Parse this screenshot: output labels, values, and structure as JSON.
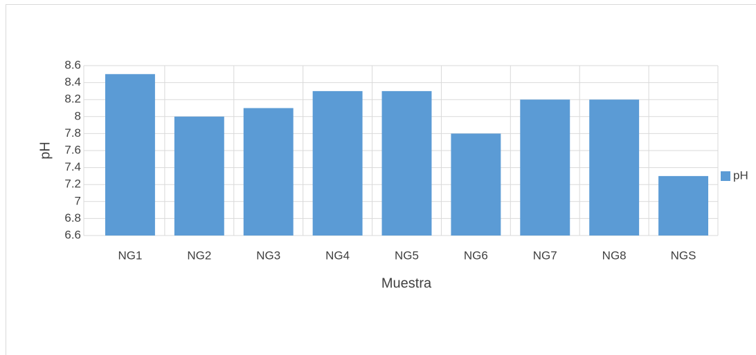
{
  "chart_data": {
    "type": "bar",
    "x_label": "Muestra",
    "y_label": "pH",
    "categories": [
      "NG1",
      "NG2",
      "NG3",
      "NG4",
      "NG5",
      "NG6",
      "NG7",
      "NG8",
      "NGS"
    ],
    "series": [
      {
        "name": "pH",
        "color": "#5b9bd5",
        "values": [
          8.5,
          8.0,
          8.1,
          8.3,
          8.3,
          7.8,
          8.2,
          8.2,
          7.3
        ]
      }
    ],
    "ylim": [
      6.6,
      8.6
    ],
    "yticks": [
      6.6,
      6.8,
      7,
      7.2,
      7.4,
      7.6,
      7.8,
      8,
      8.2,
      8.4,
      8.6
    ],
    "grid": true,
    "legend": "right"
  }
}
